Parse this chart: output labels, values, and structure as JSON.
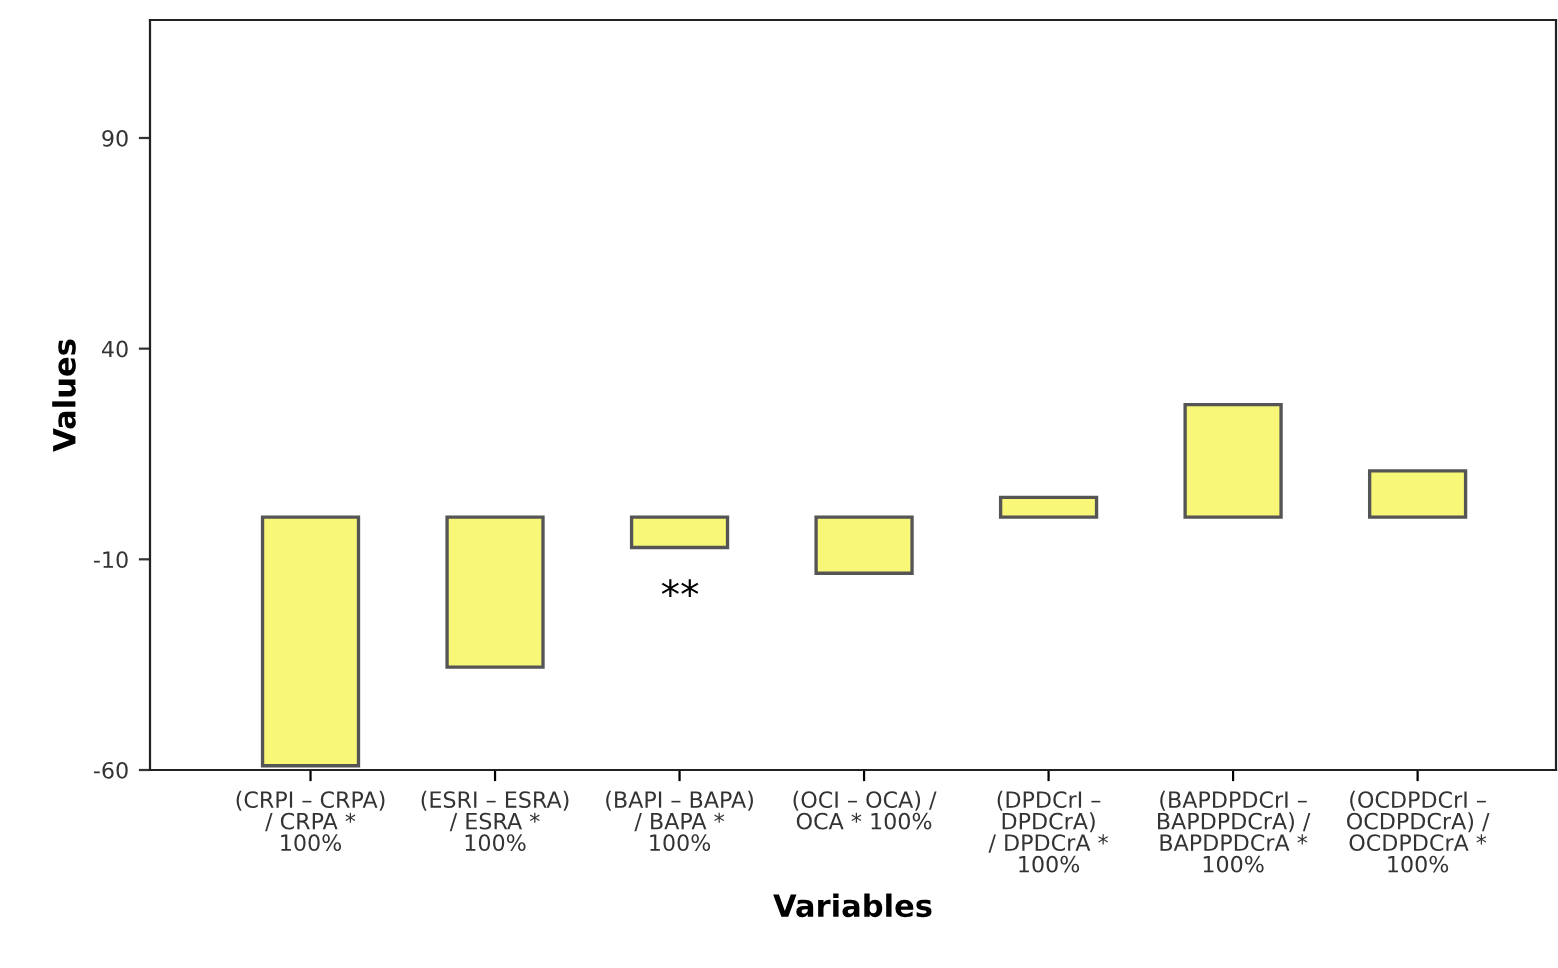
{
  "chart_data": {
    "type": "bar",
    "xlabel": "Variables",
    "ylabel": "Values",
    "categories": [
      "(CRPI – CRPA)\n/ CRPA *\n100%",
      "(ESRI – ESRA)\n/ ESRA *\n100%",
      "(BAPI – BAPA)\n/ BAPA *\n100%",
      "(OCI – OCA) /\nOCA * 100%",
      "(DPDCrI –\nDPDCrA)\n/ DPDCrA *\n100%",
      "(BAPDPDCrI –\nBAPDPDCrA) /\nBAPDPDCrA *\n100%",
      "(OCDPDCrI –\nOCDPDCrA) /\nOCDPDCrA *\n100%"
    ],
    "values": [
      -59,
      -35.6,
      -7.2,
      -13.3,
      4.7,
      26.7,
      11
    ],
    "color": "#f9f777",
    "ylim": [
      -60,
      118
    ],
    "yticks": [
      -60,
      -10,
      40,
      90
    ],
    "annotations": [
      "**"
    ],
    "grid": false
  }
}
